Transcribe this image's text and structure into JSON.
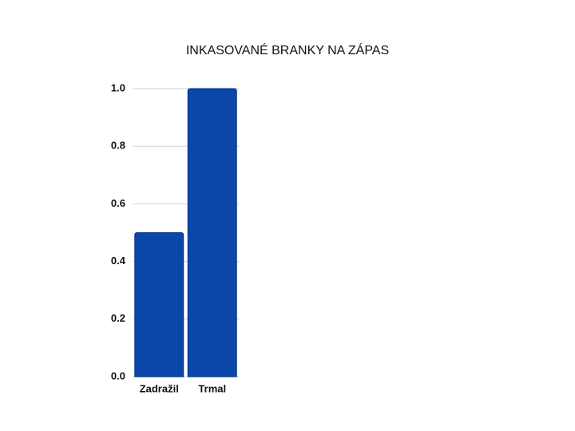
{
  "chart_data": {
    "type": "bar",
    "title": "INKASOVANÉ BRANKY NA ZÁPAS",
    "categories": [
      "Zadražil",
      "Trmal"
    ],
    "values": [
      0.5,
      1.0
    ],
    "color": "#0b47a8",
    "ylim": [
      0,
      1
    ],
    "yticks": [
      {
        "value": 0,
        "label": "0.0"
      },
      0.2,
      0.4,
      0.6,
      0.8,
      {
        "value": 1,
        "label": "1.0"
      }
    ],
    "grid": true
  }
}
